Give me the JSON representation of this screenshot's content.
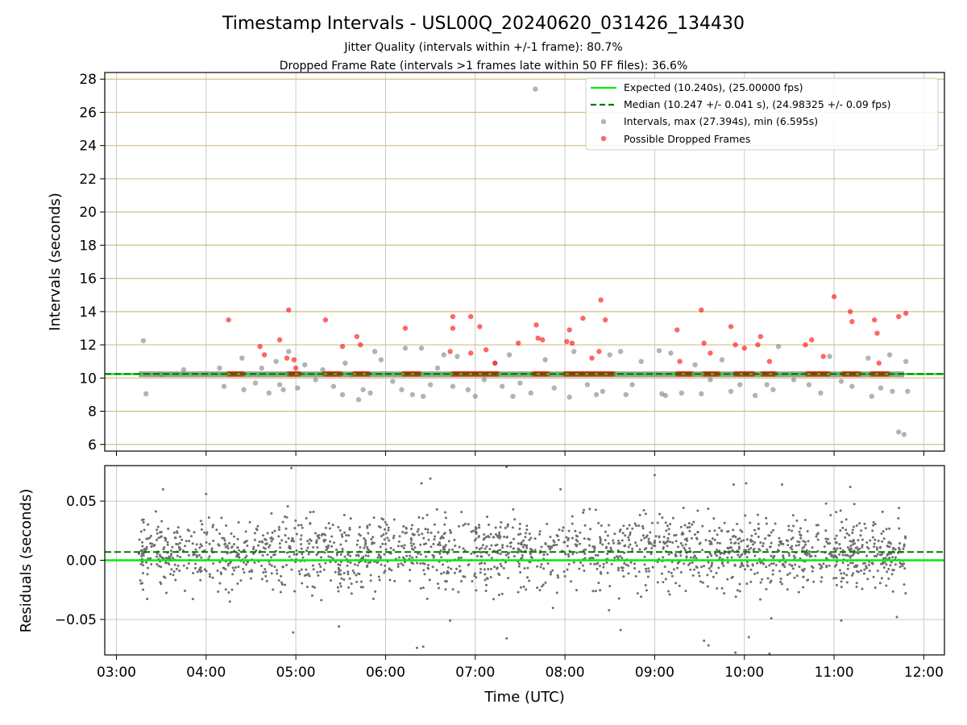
{
  "chart_data": [
    {
      "type": "scatter",
      "title": "Timestamp Intervals - USL00Q_20240620_031426_134430",
      "subtitle_lines": [
        "Jitter Quality (intervals within +/-1 frame): 80.7%",
        "Dropped Frame Rate (intervals >1 frames late within 50 FF files): 36.6%"
      ],
      "ylabel": "Intervals (seconds)",
      "ylim": [
        5.6,
        28.4
      ],
      "yticks": [
        6,
        8,
        10,
        12,
        14,
        16,
        18,
        20,
        22,
        24,
        26,
        28
      ],
      "xlim_hours": [
        2.87,
        12.23
      ],
      "grid": true,
      "legend_position": "top-right",
      "expected_interval": 10.24,
      "median_interval": 10.247,
      "legend": [
        "Expected (10.240s), (25.00000 fps)",
        "Median (10.247 +/- 0.041 s), (24.98325 +/- 0.09 fps)",
        "Intervals, max (27.394s), min (6.595s)",
        "Possible Dropped Frames"
      ],
      "colors": {
        "expected": "#00ee00",
        "median": "#007700",
        "intervals": "#808080",
        "dropped": "#ff0000",
        "hgrid": "#d2c080",
        "vgrid": "#c8c8c8"
      },
      "intervals_band": {
        "x_start_hour": 3.25,
        "x_end_hour": 11.78,
        "y_low": 10.05,
        "y_high": 10.4
      },
      "intervals_scatter": [
        [
          3.3,
          12.25
        ],
        [
          3.33,
          9.05
        ],
        [
          3.5,
          10.2
        ],
        [
          3.75,
          10.5
        ],
        [
          4.15,
          10.6
        ],
        [
          4.2,
          9.5
        ],
        [
          4.4,
          11.2
        ],
        [
          4.42,
          9.3
        ],
        [
          4.55,
          9.7
        ],
        [
          4.62,
          10.6
        ],
        [
          4.7,
          9.1
        ],
        [
          4.78,
          11.0
        ],
        [
          4.82,
          9.6
        ],
        [
          4.86,
          9.3
        ],
        [
          4.92,
          11.6
        ],
        [
          5.02,
          9.4
        ],
        [
          5.1,
          10.8
        ],
        [
          5.22,
          9.9
        ],
        [
          5.3,
          10.5
        ],
        [
          5.42,
          9.5
        ],
        [
          5.52,
          9.0
        ],
        [
          5.55,
          10.9
        ],
        [
          5.62,
          10.2
        ],
        [
          5.7,
          8.7
        ],
        [
          5.75,
          9.3
        ],
        [
          5.83,
          9.1
        ],
        [
          5.88,
          11.6
        ],
        [
          5.95,
          11.1
        ],
        [
          6.08,
          9.8
        ],
        [
          6.18,
          9.3
        ],
        [
          6.22,
          11.8
        ],
        [
          6.3,
          9.0
        ],
        [
          6.4,
          11.8
        ],
        [
          6.42,
          8.9
        ],
        [
          6.5,
          9.6
        ],
        [
          6.58,
          10.6
        ],
        [
          6.65,
          11.4
        ],
        [
          6.75,
          9.5
        ],
        [
          6.8,
          11.3
        ],
        [
          6.92,
          9.3
        ],
        [
          7.0,
          8.9
        ],
        [
          7.1,
          9.9
        ],
        [
          7.22,
          10.9
        ],
        [
          7.3,
          9.5
        ],
        [
          7.38,
          11.4
        ],
        [
          7.42,
          8.9
        ],
        [
          7.5,
          9.7
        ],
        [
          7.62,
          9.1
        ],
        [
          7.78,
          11.1
        ],
        [
          7.88,
          9.4
        ],
        [
          8.05,
          8.85
        ],
        [
          8.1,
          11.6
        ],
        [
          8.25,
          9.6
        ],
        [
          8.35,
          9.0
        ],
        [
          8.42,
          9.2
        ],
        [
          8.5,
          11.4
        ],
        [
          8.62,
          11.6
        ],
        [
          8.68,
          9.0
        ],
        [
          8.75,
          9.6
        ],
        [
          8.85,
          11.0
        ],
        [
          9.05,
          11.65
        ],
        [
          9.08,
          9.05
        ],
        [
          9.12,
          8.95
        ],
        [
          9.18,
          11.5
        ],
        [
          9.3,
          9.1
        ],
        [
          9.45,
          10.8
        ],
        [
          9.52,
          9.05
        ],
        [
          9.62,
          9.9
        ],
        [
          9.75,
          11.1
        ],
        [
          9.85,
          9.2
        ],
        [
          9.95,
          9.6
        ],
        [
          10.12,
          8.95
        ],
        [
          10.25,
          9.6
        ],
        [
          10.38,
          11.9
        ],
        [
          10.32,
          9.3
        ],
        [
          10.55,
          9.9
        ],
        [
          10.72,
          9.6
        ],
        [
          10.85,
          9.1
        ],
        [
          10.95,
          11.3
        ],
        [
          11.08,
          9.8
        ],
        [
          11.2,
          9.5
        ],
        [
          11.38,
          11.2
        ],
        [
          11.42,
          8.9
        ],
        [
          11.52,
          9.4
        ],
        [
          11.62,
          11.4
        ],
        [
          11.65,
          9.2
        ],
        [
          11.72,
          6.75
        ],
        [
          11.78,
          6.6
        ],
        [
          11.8,
          11.0
        ],
        [
          11.82,
          9.2
        ],
        [
          7.67,
          27.4
        ]
      ],
      "dropped_band": [
        [
          4.25,
          4.42
        ],
        [
          4.92,
          5.05
        ],
        [
          5.32,
          5.5
        ],
        [
          5.65,
          5.82
        ],
        [
          6.2,
          6.38
        ],
        [
          6.75,
          7.25
        ],
        [
          7.65,
          7.82
        ],
        [
          8.0,
          8.55
        ],
        [
          9.25,
          9.42
        ],
        [
          9.55,
          9.72
        ],
        [
          9.9,
          10.1
        ],
        [
          10.2,
          10.35
        ],
        [
          10.7,
          10.95
        ],
        [
          11.1,
          11.28
        ],
        [
          11.42,
          11.6
        ]
      ],
      "dropped_scatter": [
        [
          4.25,
          13.5
        ],
        [
          4.6,
          11.9
        ],
        [
          4.65,
          11.4
        ],
        [
          4.82,
          12.3
        ],
        [
          4.9,
          11.2
        ],
        [
          4.92,
          14.1
        ],
        [
          4.98,
          11.1
        ],
        [
          5.0,
          10.6
        ],
        [
          5.33,
          13.5
        ],
        [
          5.52,
          11.9
        ],
        [
          5.68,
          12.5
        ],
        [
          5.72,
          12.0
        ],
        [
          6.22,
          13.0
        ],
        [
          6.72,
          11.6
        ],
        [
          6.75,
          13.7
        ],
        [
          6.75,
          13.0
        ],
        [
          6.95,
          13.7
        ],
        [
          6.95,
          11.5
        ],
        [
          7.05,
          13.1
        ],
        [
          7.12,
          11.7
        ],
        [
          7.22,
          10.9
        ],
        [
          7.48,
          12.1
        ],
        [
          7.68,
          13.2
        ],
        [
          7.7,
          12.4
        ],
        [
          7.75,
          12.3
        ],
        [
          8.02,
          12.2
        ],
        [
          8.05,
          12.9
        ],
        [
          8.08,
          12.1
        ],
        [
          8.2,
          13.6
        ],
        [
          8.3,
          11.2
        ],
        [
          8.38,
          11.6
        ],
        [
          8.4,
          14.7
        ],
        [
          8.45,
          13.5
        ],
        [
          9.25,
          12.9
        ],
        [
          9.28,
          11.0
        ],
        [
          9.52,
          14.1
        ],
        [
          9.55,
          12.1
        ],
        [
          9.62,
          11.5
        ],
        [
          9.85,
          13.1
        ],
        [
          9.9,
          12.0
        ],
        [
          10.0,
          11.8
        ],
        [
          10.15,
          12.0
        ],
        [
          10.18,
          12.5
        ],
        [
          10.28,
          11.0
        ],
        [
          10.68,
          12.0
        ],
        [
          10.75,
          12.3
        ],
        [
          10.88,
          11.3
        ],
        [
          11.0,
          14.9
        ],
        [
          11.18,
          14.0
        ],
        [
          11.2,
          13.4
        ],
        [
          11.45,
          13.5
        ],
        [
          11.48,
          12.7
        ],
        [
          11.5,
          10.9
        ],
        [
          11.72,
          13.7
        ],
        [
          11.8,
          13.9
        ]
      ]
    },
    {
      "type": "scatter",
      "ylabel": "Residuals (seconds)",
      "xlabel": "Time (UTC)",
      "ylim": [
        -0.08,
        0.08
      ],
      "yticks": [
        0.05,
        0.0,
        -0.05
      ],
      "ytick_labels": [
        "0.05",
        "0.00",
        "−0.05"
      ],
      "xlim_hours": [
        2.87,
        12.23
      ],
      "xticks_hours": [
        3,
        4,
        5,
        6,
        7,
        8,
        9,
        10,
        11,
        12
      ],
      "xtick_labels": [
        "03:00",
        "04:00",
        "05:00",
        "06:00",
        "07:00",
        "08:00",
        "09:00",
        "10:00",
        "11:00",
        "12:00"
      ],
      "expected_residual": 0.0,
      "median_residual": 0.007,
      "grid": true,
      "colors": {
        "points": "#6e6e6e",
        "expected": "#00ee00",
        "median": "#007700",
        "grid": "#c8c8c8"
      },
      "residual_spread_sd": 0.022,
      "residual_x_range_hours": [
        3.25,
        11.8
      ],
      "residual_point_count": 1900,
      "residual_outliers": [
        [
          4.95,
          0.078
        ],
        [
          4.97,
          -0.061
        ],
        [
          5.48,
          -0.056
        ],
        [
          6.35,
          -0.074
        ],
        [
          6.42,
          -0.073
        ],
        [
          6.4,
          0.065
        ],
        [
          6.5,
          0.069
        ],
        [
          6.72,
          -0.051
        ],
        [
          7.35,
          0.079
        ],
        [
          7.35,
          -0.066
        ],
        [
          9.0,
          0.072
        ],
        [
          9.55,
          -0.068
        ],
        [
          9.6,
          -0.072
        ],
        [
          9.9,
          -0.078
        ],
        [
          10.05,
          -0.065
        ],
        [
          10.28,
          -0.079
        ],
        [
          10.3,
          -0.049
        ],
        [
          3.52,
          0.06
        ],
        [
          4.0,
          0.056
        ],
        [
          7.95,
          0.06
        ],
        [
          9.88,
          0.064
        ],
        [
          10.02,
          0.065
        ],
        [
          10.42,
          0.064
        ],
        [
          11.18,
          0.062
        ],
        [
          11.08,
          -0.051
        ],
        [
          11.7,
          -0.048
        ],
        [
          8.62,
          -0.059
        ]
      ]
    }
  ]
}
